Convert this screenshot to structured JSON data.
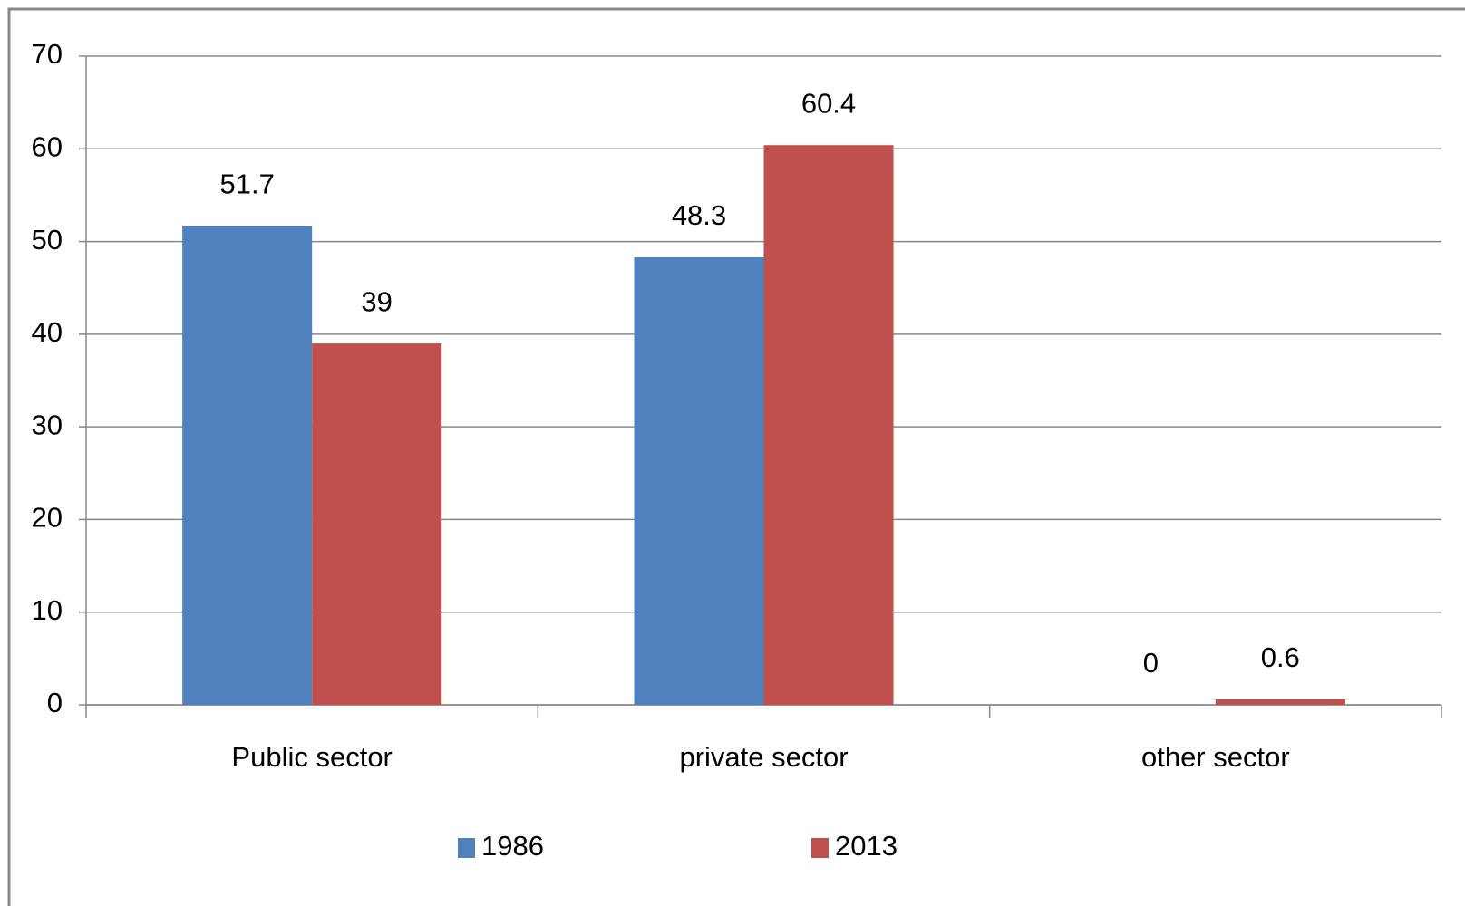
{
  "chart_data": {
    "type": "bar",
    "categories": [
      "Public sector",
      "private sector",
      "other sector"
    ],
    "series": [
      {
        "name": "1986",
        "color": "#4f81bd",
        "values": [
          51.7,
          48.3,
          0
        ]
      },
      {
        "name": "2013",
        "color": "#c0504d",
        "values": [
          39,
          60.4,
          0.6
        ]
      }
    ],
    "ylim": [
      0,
      70
    ],
    "yticks": [
      0,
      10,
      20,
      30,
      40,
      50,
      60,
      70
    ],
    "grid": true,
    "legend": "bottom"
  }
}
